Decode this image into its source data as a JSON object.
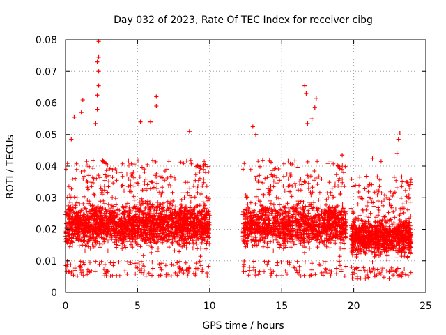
{
  "chart_data": {
    "type": "scatter",
    "title": "Day 032 of 2023, Rate Of TEC Index for receiver cibg",
    "xlabel": "GPS time / hours",
    "ylabel": "ROTI / TECUs",
    "xlim": [
      0,
      25
    ],
    "ylim": [
      0,
      0.08
    ],
    "xticks": [
      0,
      5,
      10,
      15,
      20,
      25
    ],
    "xtick_labels": [
      "0",
      "5",
      "10",
      "15",
      "20",
      "25"
    ],
    "yticks": [
      0,
      0.01,
      0.02,
      0.03,
      0.04,
      0.05,
      0.06,
      0.07,
      0.08
    ],
    "ytick_labels": [
      "0",
      "0.01",
      "0.02",
      "0.03",
      "0.04",
      "0.05",
      "0.06",
      "0.07",
      "0.08"
    ],
    "grid": true,
    "marker": "+",
    "color": "#ff0000",
    "series": [
      {
        "name": "ROTI",
        "description_segments": [
          {
            "x_range": [
              0.0,
              10.0
            ],
            "y_core": [
              0.01,
              0.03
            ]
          },
          {
            "x_range": [
              12.3,
              19.5
            ],
            "y_core": [
              0.01,
              0.03
            ]
          },
          {
            "x_range": [
              19.8,
              24.0
            ],
            "y_core": [
              0.008,
              0.025
            ]
          }
        ],
        "peaks": [
          {
            "x": 2.3,
            "y": 0.0795
          },
          {
            "x": 2.3,
            "y": 0.0745
          },
          {
            "x": 2.2,
            "y": 0.073
          },
          {
            "x": 2.3,
            "y": 0.07
          },
          {
            "x": 2.3,
            "y": 0.0655
          },
          {
            "x": 2.2,
            "y": 0.0625
          },
          {
            "x": 2.2,
            "y": 0.058
          },
          {
            "x": 2.1,
            "y": 0.0535
          },
          {
            "x": 1.2,
            "y": 0.061
          },
          {
            "x": 1.1,
            "y": 0.057
          },
          {
            "x": 0.6,
            "y": 0.0555
          },
          {
            "x": 0.4,
            "y": 0.0485
          },
          {
            "x": 6.3,
            "y": 0.062
          },
          {
            "x": 6.3,
            "y": 0.059
          },
          {
            "x": 5.2,
            "y": 0.054
          },
          {
            "x": 5.9,
            "y": 0.054
          },
          {
            "x": 8.6,
            "y": 0.051
          },
          {
            "x": 13.0,
            "y": 0.0525
          },
          {
            "x": 13.2,
            "y": 0.05
          },
          {
            "x": 16.6,
            "y": 0.0655
          },
          {
            "x": 16.7,
            "y": 0.063
          },
          {
            "x": 17.4,
            "y": 0.0615
          },
          {
            "x": 17.3,
            "y": 0.0585
          },
          {
            "x": 17.1,
            "y": 0.055
          },
          {
            "x": 16.8,
            "y": 0.0535
          },
          {
            "x": 23.2,
            "y": 0.0505
          },
          {
            "x": 23.1,
            "y": 0.0485
          },
          {
            "x": 23.0,
            "y": 0.044
          },
          {
            "x": 21.3,
            "y": 0.0425
          },
          {
            "x": 21.9,
            "y": 0.0415
          },
          {
            "x": 9.7,
            "y": 0.0405
          },
          {
            "x": 19.2,
            "y": 0.0435
          }
        ]
      }
    ]
  }
}
